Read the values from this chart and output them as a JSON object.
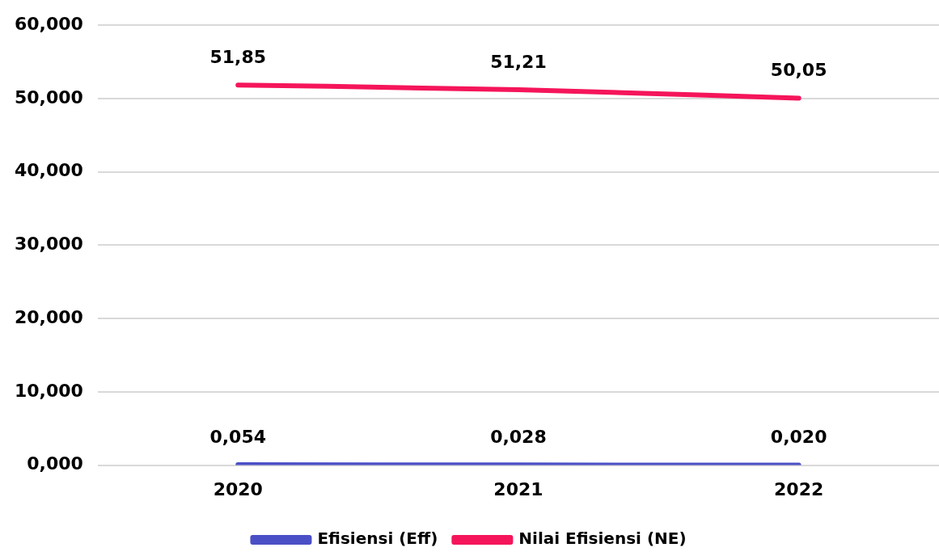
{
  "chart_data": {
    "type": "line",
    "categories": [
      "2020",
      "2021",
      "2022"
    ],
    "series": [
      {
        "name": "Efisiensi (Eff)",
        "color": "#4b4fc6",
        "values": [
          0.054,
          0.028,
          0.02
        ],
        "value_labels": [
          "0,054",
          "0,028",
          "0,020"
        ]
      },
      {
        "name": "Nilai Efisiensi (NE)",
        "color": "#f5155a",
        "values": [
          51.85,
          51.21,
          50.05
        ],
        "value_labels": [
          "51,85",
          "51,21",
          "50,05"
        ]
      }
    ],
    "ylim": [
      0,
      60
    ],
    "yticks": [
      {
        "value": 0,
        "label": "0,000"
      },
      {
        "value": 10,
        "label": "10,000"
      },
      {
        "value": 20,
        "label": "20,000"
      },
      {
        "value": 30,
        "label": "30,000"
      },
      {
        "value": 40,
        "label": "40,000"
      },
      {
        "value": 50,
        "label": "50,000"
      },
      {
        "value": 60,
        "label": "60,000"
      }
    ],
    "grid": "y",
    "legend": "bottom",
    "marker": "none",
    "line_style": "solid"
  }
}
